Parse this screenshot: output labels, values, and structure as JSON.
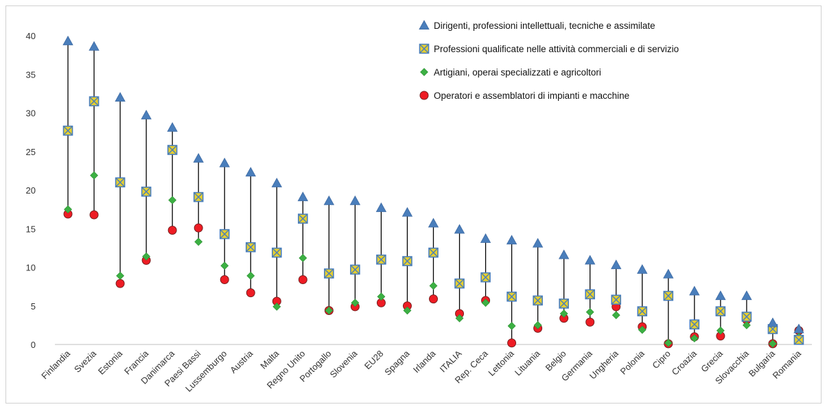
{
  "chart_data": {
    "type": "scatter",
    "title": "",
    "xlabel": "",
    "ylabel": "",
    "ylim": [
      0,
      40
    ],
    "yticks": [
      0,
      5,
      10,
      15,
      20,
      25,
      30,
      35,
      40
    ],
    "grid": false,
    "legend_position": "top-right",
    "categories": [
      "Finlandia",
      "Svezia",
      "Estonia",
      "Francia",
      "Danimarca",
      "Paesi Bassi",
      "Lussemburgo",
      "Austria",
      "Malta",
      "Regno Unito",
      "Portogallo",
      "Slovenia",
      "EU28",
      "Spagna",
      "Irlanda",
      "ITALIA",
      "Rep. Ceca",
      "Lettonia",
      "Lituania",
      "Belgio",
      "Germania",
      "Ungheria",
      "Polonia",
      "Cipro",
      "Croazia",
      "Grecia",
      "Slovacchia",
      "Bulgaria",
      "Romania"
    ],
    "series": [
      {
        "name": "Dirigenti, professioni intellettuali, tecniche e assimilate",
        "marker": "triangle",
        "color": "#4a7ebb",
        "values": [
          39.3,
          38.6,
          32.0,
          29.7,
          28.1,
          24.1,
          23.5,
          22.3,
          20.9,
          19.1,
          18.6,
          18.6,
          17.7,
          17.1,
          15.7,
          14.9,
          13.7,
          13.5,
          13.1,
          11.6,
          10.9,
          10.3,
          9.7,
          9.1,
          6.9,
          6.3,
          6.3,
          2.8,
          2.0
        ]
      },
      {
        "name": "Professioni qualificate nelle attività commerciali e di servizio",
        "marker": "square-x",
        "color": "#4a7ebb",
        "fill": "#e6cf2e",
        "values": [
          27.7,
          31.5,
          21.0,
          19.8,
          25.2,
          19.1,
          14.3,
          12.6,
          11.9,
          16.3,
          9.2,
          9.7,
          11.0,
          10.8,
          11.9,
          7.9,
          8.7,
          6.2,
          5.7,
          5.3,
          6.5,
          5.8,
          4.3,
          6.3,
          2.6,
          4.3,
          3.6,
          2.0,
          0.6
        ]
      },
      {
        "name": "Artigiani, operai specializzati e agricoltori",
        "marker": "diamond",
        "color": "#3cb043",
        "values": [
          17.5,
          21.9,
          8.9,
          11.4,
          18.7,
          13.3,
          10.2,
          8.9,
          4.9,
          11.2,
          4.4,
          5.4,
          6.2,
          4.4,
          7.6,
          3.4,
          5.4,
          2.4,
          2.5,
          4.0,
          4.2,
          3.8,
          1.9,
          0.2,
          0.8,
          1.8,
          2.5,
          0.1,
          1.0
        ]
      },
      {
        "name": "Operatori e assemblatori di impianti e macchine",
        "marker": "circle",
        "color": "#ee1c24",
        "values": [
          16.9,
          16.8,
          7.9,
          10.9,
          14.8,
          15.1,
          8.4,
          6.7,
          5.6,
          8.4,
          4.4,
          4.9,
          5.4,
          5.0,
          5.9,
          4.0,
          5.7,
          0.2,
          2.1,
          3.4,
          2.9,
          4.9,
          2.3,
          0.1,
          1.0,
          1.1,
          3.2,
          0.1,
          1.8
        ]
      }
    ]
  }
}
